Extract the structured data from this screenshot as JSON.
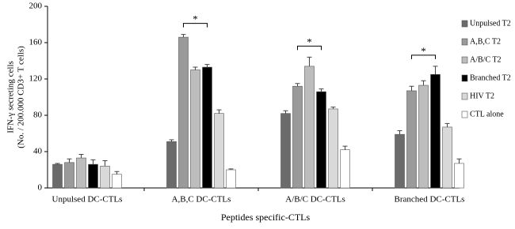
{
  "chart_data": {
    "type": "bar",
    "y_label": [
      "IFN-γ secreting cells",
      "(No. / 200.000 CD3+ T cells)"
    ],
    "x_label": "Peptides specific-CTLs",
    "categories": [
      "Unpulsed DC-CTLs",
      "A,B,C DC-CTLs",
      "A/B/C DC-CTLs",
      "Branched DC-CTLs"
    ],
    "series": [
      {
        "name": "Unpulsed T2",
        "color": "#6b6b6b",
        "values": [
          26,
          51,
          82,
          59
        ],
        "errors": [
          1,
          2,
          3,
          4
        ]
      },
      {
        "name": "A,B,C T2",
        "color": "#9a9a9a",
        "values": [
          28,
          166,
          112,
          107
        ],
        "errors": [
          4,
          3,
          3,
          5
        ]
      },
      {
        "name": "A/B/C T2",
        "color": "#bdbdbd",
        "values": [
          33,
          130,
          134,
          113
        ],
        "errors": [
          4,
          3,
          10,
          5
        ]
      },
      {
        "name": "Branched T2",
        "color": "#000000",
        "values": [
          26,
          133,
          106,
          125
        ],
        "errors": [
          5,
          3,
          3,
          9
        ]
      },
      {
        "name": "HIV T2",
        "color": "#d9d9d9",
        "values": [
          24,
          82,
          87,
          67
        ],
        "errors": [
          6,
          4,
          2,
          4
        ]
      },
      {
        "name": "CTL alone",
        "color": "#ffffff",
        "values": [
          15,
          20,
          42,
          27
        ],
        "errors": [
          3,
          1,
          4,
          5
        ]
      }
    ],
    "significance": [
      null,
      "*",
      "*",
      "*"
    ],
    "ylim": [
      0,
      200
    ],
    "yticks": [
      0,
      40,
      80,
      120,
      160,
      200
    ]
  }
}
